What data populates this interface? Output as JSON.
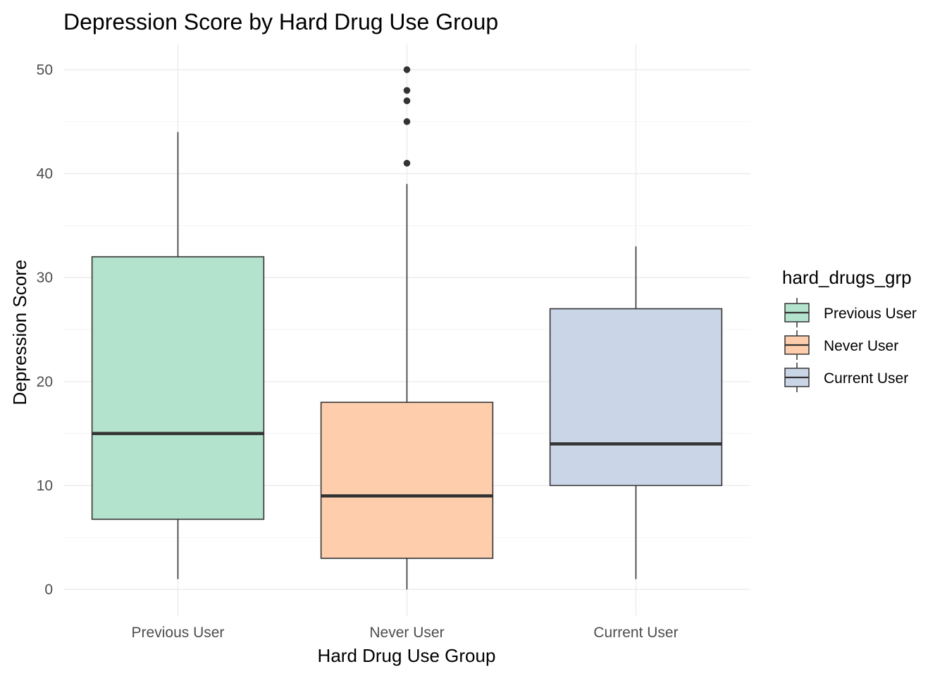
{
  "chart_data": {
    "type": "boxplot",
    "title": "Depression Score by Hard Drug Use Group",
    "xlabel": "Hard Drug Use Group",
    "ylabel": "Depression Score",
    "ylim": [
      -2.5,
      52.5
    ],
    "yticks": [
      0,
      10,
      20,
      30,
      40,
      50
    ],
    "grid": "on",
    "legend": {
      "title": "hard_drugs_grp",
      "placement": "right"
    },
    "categories": [
      "Previous User",
      "Never User",
      "Current User"
    ],
    "series": [
      {
        "name": "Previous User",
        "color": "#b3e2cd",
        "whisker_low": 1,
        "q1": 6.75,
        "median": 15,
        "q3": 32,
        "whisker_high": 44,
        "outliers": []
      },
      {
        "name": "Never User",
        "color": "#fdcdac",
        "whisker_low": 0,
        "q1": 3,
        "median": 9,
        "q3": 18,
        "whisker_high": 39,
        "outliers": [
          41,
          45,
          47,
          48,
          50
        ]
      },
      {
        "name": "Current User",
        "color": "#cbd5e8",
        "whisker_low": 1,
        "q1": 10,
        "median": 14,
        "q3": 27,
        "whisker_high": 33,
        "outliers": []
      }
    ]
  }
}
